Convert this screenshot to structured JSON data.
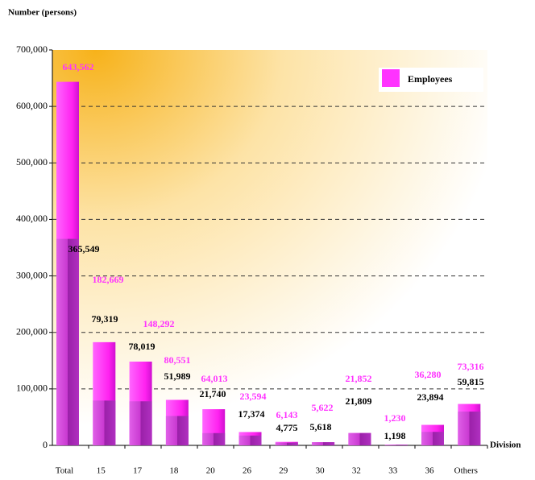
{
  "chart_data": {
    "type": "bar",
    "y_axis_label": "Number  (persons)",
    "x_axis_label": "Division",
    "categories": [
      "Total",
      "15",
      "17",
      "18",
      "20",
      "26",
      "29",
      "30",
      "32",
      "33",
      "36",
      "Others"
    ],
    "series": [
      {
        "name": "Employees",
        "color": "#ff33ff",
        "values": [
          643562,
          182669,
          148292,
          80551,
          64013,
          23594,
          6143,
          5622,
          21852,
          1230,
          36280,
          73316
        ],
        "value_labels": [
          "643,562",
          "182,669",
          "148,292",
          "80,551",
          "64,013",
          "23,594",
          "6,143",
          "5,622",
          "21,852",
          "1,230",
          "36,280",
          "73,316"
        ]
      },
      {
        "color": "#c030c8",
        "values": [
          365549,
          79319,
          78019,
          51989,
          21740,
          17374,
          4775,
          5618,
          21809,
          1198,
          23894,
          59815
        ],
        "value_labels": [
          "365,549",
          "79,319",
          "78,019",
          "51,989",
          "21,740",
          "17,374",
          "4,775",
          "5,618",
          "21,809",
          "1,198",
          "23,894",
          "59,815"
        ]
      }
    ],
    "ylim": [
      0,
      700000
    ],
    "yticks": [
      0,
      {
        "value": 100000,
        "label": "100,000"
      },
      {
        "value": 200000,
        "label": "200,000"
      },
      {
        "value": 300000,
        "label": "300,000"
      },
      {
        "value": 400000,
        "label": "400,000"
      },
      {
        "value": 500000,
        "label": "500,000"
      },
      {
        "value": 600000,
        "label": "600,000"
      },
      {
        "value": 700000,
        "label": "700,000"
      }
    ],
    "grid": true,
    "legend": "upper right"
  }
}
